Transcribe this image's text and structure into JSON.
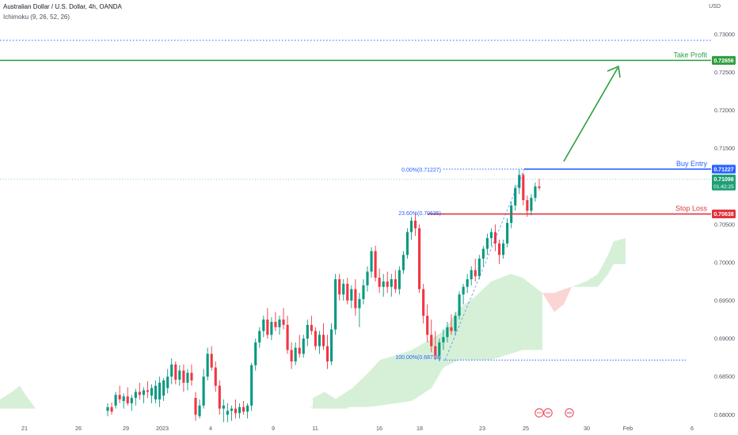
{
  "header": {
    "symbol_line": "Australian Dollar / U.S. Dollar, 4h, OANDA",
    "indicator_line": "Ichimoku (9, 26, 52, 26)",
    "currency": "USD"
  },
  "chart_data": {
    "type": "candlestick",
    "instrument": "Australian Dollar / U.S. Dollar",
    "timeframe": "4h",
    "y_ticks": [
      0.68,
      0.685,
      0.69,
      0.695,
      0.7,
      0.705,
      0.71,
      0.715,
      0.72,
      0.725,
      0.73
    ],
    "x_ticks": [
      "21",
      "26",
      "29",
      "2023",
      "4",
      "9",
      "11",
      "16",
      "18",
      "23",
      "25",
      "30",
      "Feb",
      "6"
    ],
    "ylim": [
      0.6792,
      0.7345
    ],
    "levels": [
      {
        "label": "Take Profit",
        "value": 0.72656,
        "tag": "0.72656",
        "color": "#2e9e3e"
      },
      {
        "label": "Buy Entry",
        "value": 0.71227,
        "tag": "0.71227",
        "color": "#2962ff"
      },
      {
        "label": "Stop Loss",
        "value": 0.70638,
        "tag": "0.70638",
        "color": "#e0343c"
      }
    ],
    "current_price": {
      "value": 0.71098,
      "tag": "0.71098",
      "countdown": "01:42:25",
      "color": "#1e9f75"
    },
    "fibonacci": [
      {
        "label": "0.00%(0.71227)",
        "value": 0.71227
      },
      {
        "label": "23.60%(0.70635)",
        "value": 0.70635
      },
      {
        "label": "100.00%(0.68718)",
        "value": 0.68718
      }
    ],
    "top_dotted_level": 0.7292,
    "candles": [
      [
        0.6805,
        0.6815,
        0.6798,
        0.681
      ],
      [
        0.681,
        0.6816,
        0.68,
        0.6804
      ],
      [
        0.6812,
        0.683,
        0.6808,
        0.6826
      ],
      [
        0.6826,
        0.6838,
        0.6815,
        0.682
      ],
      [
        0.6818,
        0.6828,
        0.6808,
        0.6824
      ],
      [
        0.6824,
        0.6836,
        0.6812,
        0.6815
      ],
      [
        0.6815,
        0.6826,
        0.6805,
        0.6822
      ],
      [
        0.6822,
        0.6834,
        0.6812,
        0.683
      ],
      [
        0.683,
        0.6842,
        0.682,
        0.6826
      ],
      [
        0.6826,
        0.6836,
        0.6815,
        0.6832
      ],
      [
        0.6832,
        0.6844,
        0.6822,
        0.683
      ],
      [
        0.6825,
        0.684,
        0.6815,
        0.6835
      ],
      [
        0.682,
        0.6845,
        0.6815,
        0.6838
      ],
      [
        0.682,
        0.685,
        0.681,
        0.6842
      ],
      [
        0.6825,
        0.6848,
        0.6818,
        0.6845
      ],
      [
        0.6835,
        0.686,
        0.6828,
        0.685
      ],
      [
        0.685,
        0.6874,
        0.684,
        0.6866
      ],
      [
        0.6866,
        0.687,
        0.684,
        0.6846
      ],
      [
        0.6846,
        0.6865,
        0.6838,
        0.6858
      ],
      [
        0.6858,
        0.6866,
        0.683,
        0.6842
      ],
      [
        0.6842,
        0.686,
        0.6832,
        0.6855
      ],
      [
        0.6855,
        0.6866,
        0.6838,
        0.6845
      ],
      [
        0.6822,
        0.683,
        0.6792,
        0.68
      ],
      [
        0.6798,
        0.682,
        0.6795,
        0.6812
      ],
      [
        0.6812,
        0.686,
        0.6808,
        0.685
      ],
      [
        0.685,
        0.6888,
        0.6845,
        0.688
      ],
      [
        0.688,
        0.689,
        0.6858,
        0.6862
      ],
      [
        0.6862,
        0.687,
        0.683,
        0.6838
      ],
      [
        0.6838,
        0.6845,
        0.68,
        0.6808
      ],
      [
        0.6808,
        0.682,
        0.679,
        0.6812
      ],
      [
        0.68,
        0.6815,
        0.679,
        0.6805
      ],
      [
        0.6805,
        0.6812,
        0.6792,
        0.6808
      ],
      [
        0.6808,
        0.682,
        0.6795,
        0.6802
      ],
      [
        0.6802,
        0.6815,
        0.6795,
        0.681
      ],
      [
        0.681,
        0.6818,
        0.68,
        0.6804
      ],
      [
        0.6804,
        0.6815,
        0.6795,
        0.6812
      ],
      [
        0.6812,
        0.6868,
        0.6805,
        0.6865
      ],
      [
        0.6865,
        0.69,
        0.6858,
        0.6895
      ],
      [
        0.6895,
        0.6915,
        0.6888,
        0.691
      ],
      [
        0.691,
        0.693,
        0.6902,
        0.6925
      ],
      [
        0.6925,
        0.694,
        0.69,
        0.6905
      ],
      [
        0.6905,
        0.6928,
        0.6898,
        0.6922
      ],
      [
        0.6922,
        0.6935,
        0.691,
        0.6915
      ],
      [
        0.6915,
        0.693,
        0.6905,
        0.6925
      ],
      [
        0.6925,
        0.694,
        0.6912,
        0.6918
      ],
      [
        0.6918,
        0.693,
        0.688,
        0.6885
      ],
      [
        0.6885,
        0.6895,
        0.686,
        0.687
      ],
      [
        0.687,
        0.6895,
        0.6865,
        0.6888
      ],
      [
        0.6888,
        0.6905,
        0.6875,
        0.688
      ],
      [
        0.688,
        0.6905,
        0.6875,
        0.69
      ],
      [
        0.69,
        0.6925,
        0.689,
        0.6918
      ],
      [
        0.6918,
        0.693,
        0.6905,
        0.691
      ],
      [
        0.691,
        0.6915,
        0.6885,
        0.689
      ],
      [
        0.689,
        0.691,
        0.688,
        0.6905
      ],
      [
        0.6905,
        0.692,
        0.6885,
        0.689
      ],
      [
        0.689,
        0.6905,
        0.686,
        0.687
      ],
      [
        0.687,
        0.692,
        0.6865,
        0.6912
      ],
      [
        0.6912,
        0.6985,
        0.6905,
        0.6978
      ],
      [
        0.6978,
        0.6985,
        0.695,
        0.6958
      ],
      [
        0.6958,
        0.6978,
        0.695,
        0.6972
      ],
      [
        0.6972,
        0.698,
        0.6945,
        0.695
      ],
      [
        0.695,
        0.697,
        0.694,
        0.6965
      ],
      [
        0.6965,
        0.6978,
        0.693,
        0.694
      ],
      [
        0.694,
        0.696,
        0.6915,
        0.6952
      ],
      [
        0.6952,
        0.6978,
        0.6945,
        0.697
      ],
      [
        0.697,
        0.6995,
        0.6962,
        0.6988
      ],
      [
        0.6988,
        0.702,
        0.698,
        0.7015
      ],
      [
        0.7015,
        0.7022,
        0.6975,
        0.698
      ],
      [
        0.698,
        0.6992,
        0.696,
        0.6968
      ],
      [
        0.6968,
        0.6985,
        0.6955,
        0.6975
      ],
      [
        0.6975,
        0.6988,
        0.696,
        0.6968
      ],
      [
        0.6968,
        0.6985,
        0.6955,
        0.6978
      ],
      [
        0.6978,
        0.699,
        0.696,
        0.6965
      ],
      [
        0.6965,
        0.6995,
        0.6958,
        0.699
      ],
      [
        0.699,
        0.7015,
        0.6985,
        0.701
      ],
      [
        0.701,
        0.7045,
        0.7005,
        0.704
      ],
      [
        0.704,
        0.706,
        0.703,
        0.7055
      ],
      [
        0.7055,
        0.7065,
        0.7035,
        0.7045
      ],
      [
        0.7045,
        0.705,
        0.696,
        0.6965
      ],
      [
        0.6965,
        0.6972,
        0.692,
        0.693
      ],
      [
        0.693,
        0.6945,
        0.6895,
        0.6905
      ],
      [
        0.6905,
        0.6925,
        0.6882,
        0.689
      ],
      [
        0.689,
        0.691,
        0.6872,
        0.6878
      ],
      [
        0.6878,
        0.69,
        0.687,
        0.6895
      ],
      [
        0.6895,
        0.6912,
        0.6885,
        0.6902
      ],
      [
        0.6902,
        0.6922,
        0.6895,
        0.6915
      ],
      [
        0.6915,
        0.6932,
        0.6905,
        0.691
      ],
      [
        0.691,
        0.6935,
        0.6905,
        0.693
      ],
      [
        0.693,
        0.6962,
        0.6925,
        0.6958
      ],
      [
        0.6958,
        0.6972,
        0.6945,
        0.6968
      ],
      [
        0.6968,
        0.6985,
        0.696,
        0.6978
      ],
      [
        0.6978,
        0.6995,
        0.697,
        0.699
      ],
      [
        0.699,
        0.7005,
        0.6975,
        0.6982
      ],
      [
        0.6982,
        0.701,
        0.6978,
        0.7005
      ],
      [
        0.7005,
        0.7022,
        0.6995,
        0.7018
      ],
      [
        0.7018,
        0.7038,
        0.701,
        0.7032
      ],
      [
        0.7032,
        0.7045,
        0.7022,
        0.704
      ],
      [
        0.704,
        0.705,
        0.7015,
        0.7025
      ],
      [
        0.7025,
        0.703,
        0.6998,
        0.701
      ],
      [
        0.701,
        0.703,
        0.7005,
        0.7025
      ],
      [
        0.7025,
        0.7058,
        0.702,
        0.7052
      ],
      [
        0.7052,
        0.708,
        0.7045,
        0.7075
      ],
      [
        0.7075,
        0.7102,
        0.7068,
        0.7098
      ],
      [
        0.7098,
        0.7122,
        0.709,
        0.7115
      ],
      [
        0.7115,
        0.7118,
        0.7075,
        0.7082
      ],
      [
        0.7082,
        0.7088,
        0.706,
        0.7068
      ],
      [
        0.7068,
        0.709,
        0.7062,
        0.7085
      ],
      [
        0.7085,
        0.7105,
        0.708,
        0.71
      ],
      [
        0.71,
        0.711,
        0.7095,
        0.7098
      ]
    ],
    "cloud_front": [
      [
        0,
        0.6808,
        0.6808
      ],
      [
        40,
        0.6808,
        0.6808
      ],
      [
        130,
        0.681,
        0.681
      ],
      [
        200,
        0.6808,
        0.6808
      ],
      [
        260,
        0.6808,
        0.6808
      ],
      [
        330,
        0.681,
        0.681
      ],
      [
        390,
        0.681,
        0.681
      ],
      [
        420,
        0.6818,
        0.6808
      ],
      [
        445,
        0.6835,
        0.681
      ],
      [
        465,
        0.6855,
        0.681
      ],
      [
        480,
        0.6872,
        0.6812
      ],
      [
        500,
        0.6878,
        0.6815
      ],
      [
        520,
        0.6885,
        0.6818
      ],
      [
        545,
        0.69,
        0.6835
      ],
      [
        560,
        0.691,
        0.6862
      ],
      [
        580,
        0.694,
        0.6872
      ],
      [
        600,
        0.6955,
        0.6872
      ],
      [
        620,
        0.6975,
        0.6872
      ],
      [
        645,
        0.6985,
        0.688
      ],
      [
        660,
        0.698,
        0.6885
      ],
      [
        675,
        0.6968,
        0.6885
      ],
      [
        685,
        0.696,
        0.6885
      ]
    ],
    "cloud_red": [
      [
        685,
        0.696,
        0.696
      ],
      [
        700,
        0.6935,
        0.696
      ],
      [
        712,
        0.6945,
        0.6965
      ],
      [
        722,
        0.6968,
        0.6968
      ]
    ],
    "cloud_future": [
      [
        722,
        0.6968,
        0.6968
      ],
      [
        740,
        0.6975,
        0.6968
      ],
      [
        755,
        0.6985,
        0.6968
      ],
      [
        768,
        0.701,
        0.6985
      ],
      [
        775,
        0.7028,
        0.6998
      ],
      [
        790,
        0.7032,
        0.6998
      ]
    ],
    "cloud_far_left": [
      [
        0,
        0.6808,
        0.682
      ],
      [
        15,
        0.6808,
        0.683
      ],
      [
        25,
        0.6808,
        0.6838
      ],
      [
        33,
        0.6808,
        0.6825
      ],
      [
        45,
        0.6808,
        0.6808
      ]
    ],
    "cloud_mid_left": [
      [
        395,
        0.6808,
        0.6822
      ],
      [
        410,
        0.6808,
        0.683
      ],
      [
        425,
        0.6808,
        0.682
      ],
      [
        440,
        0.6808,
        0.6808
      ]
    ]
  }
}
